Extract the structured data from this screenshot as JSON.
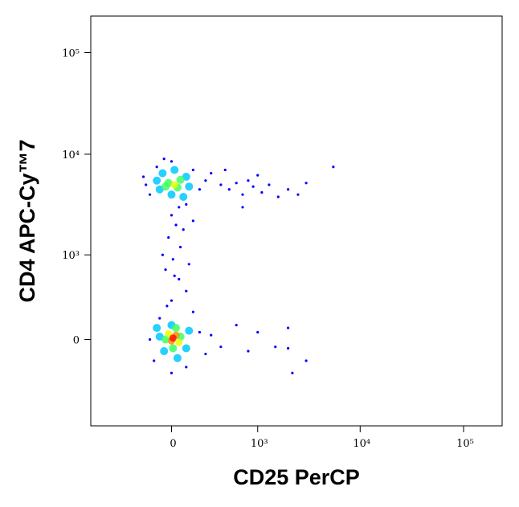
{
  "chart_data": {
    "type": "scatter",
    "xlabel": "CD25 PerCP",
    "ylabel": "CD4 APC-Cy™7",
    "xscale": "biexponential",
    "yscale": "biexponential",
    "xlim": [
      -880,
      236000
    ],
    "ylim": [
      -1040,
      229000
    ],
    "xticks": [
      0,
      {
        "value": 1000,
        "label": "10³"
      },
      {
        "value": 10000,
        "label": "10⁴"
      },
      {
        "value": 100000,
        "label": "10⁵"
      }
    ],
    "yticks": [
      0,
      {
        "value": 1000,
        "label": "10³"
      },
      {
        "value": 10000,
        "label": "10⁴"
      },
      {
        "value": 100000,
        "label": "10⁵"
      }
    ],
    "series": [
      {
        "color": "#0000ff",
        "x": [
          -200,
          -150,
          -100,
          150,
          200,
          250,
          300,
          -180,
          100,
          0,
          50,
          -50,
          400,
          500,
          600,
          700,
          800,
          900,
          1100,
          1300,
          1600,
          2000,
          2500,
          3000,
          5500,
          700,
          1000,
          450,
          0,
          30,
          -20,
          60,
          10,
          -40,
          50,
          100,
          0,
          -30,
          80,
          150,
          20,
          -60,
          120,
          -150,
          200,
          250,
          -120,
          0,
          100,
          300,
          400,
          600,
          800,
          1000,
          2000,
          2000,
          2200,
          3000,
          1500,
          150,
          -80
        ],
        "values": [
          6000,
          4000,
          7500,
          7000,
          4500,
          5500,
          6500,
          5000,
          3200,
          8500,
          3000,
          9000,
          5000,
          4500,
          5200,
          4000,
          5500,
          4800,
          4200,
          5000,
          3800,
          4500,
          4000,
          5200,
          7500,
          3000,
          6200,
          7000,
          2500,
          2000,
          1500,
          1200,
          900,
          700,
          550,
          400,
          300,
          250,
          1800,
          2200,
          600,
          1000,
          800,
          0,
          50,
          -100,
          -150,
          -250,
          -200,
          30,
          -50,
          100,
          -80,
          50,
          80,
          -60,
          -250,
          -150,
          -50,
          200,
          150
        ]
      },
      {
        "color": "#00c8ff",
        "x": [
          -100,
          -80,
          100,
          120,
          0,
          20,
          -60,
          80,
          -80,
          100,
          0,
          -50,
          120,
          40,
          -100
        ],
        "values": [
          5500,
          4500,
          6000,
          4800,
          4000,
          7000,
          6500,
          3800,
          20,
          -60,
          100,
          -80,
          60,
          -130,
          80
        ]
      },
      {
        "color": "#40ff60",
        "x": [
          -20,
          40,
          60,
          -40,
          -40,
          60,
          10,
          30
        ],
        "values": [
          5200,
          4700,
          5600,
          4800,
          0,
          20,
          -60,
          80
        ]
      },
      {
        "color": "#e8ff00",
        "x": [
          20,
          -20,
          50
        ],
        "values": [
          5000,
          40,
          -20
        ]
      },
      {
        "color": "#ff9000",
        "x": [
          0,
          30
        ],
        "values": [
          -10,
          30
        ]
      },
      {
        "color": "#ff1000",
        "x": [
          10
        ],
        "values": [
          10
        ]
      }
    ]
  }
}
